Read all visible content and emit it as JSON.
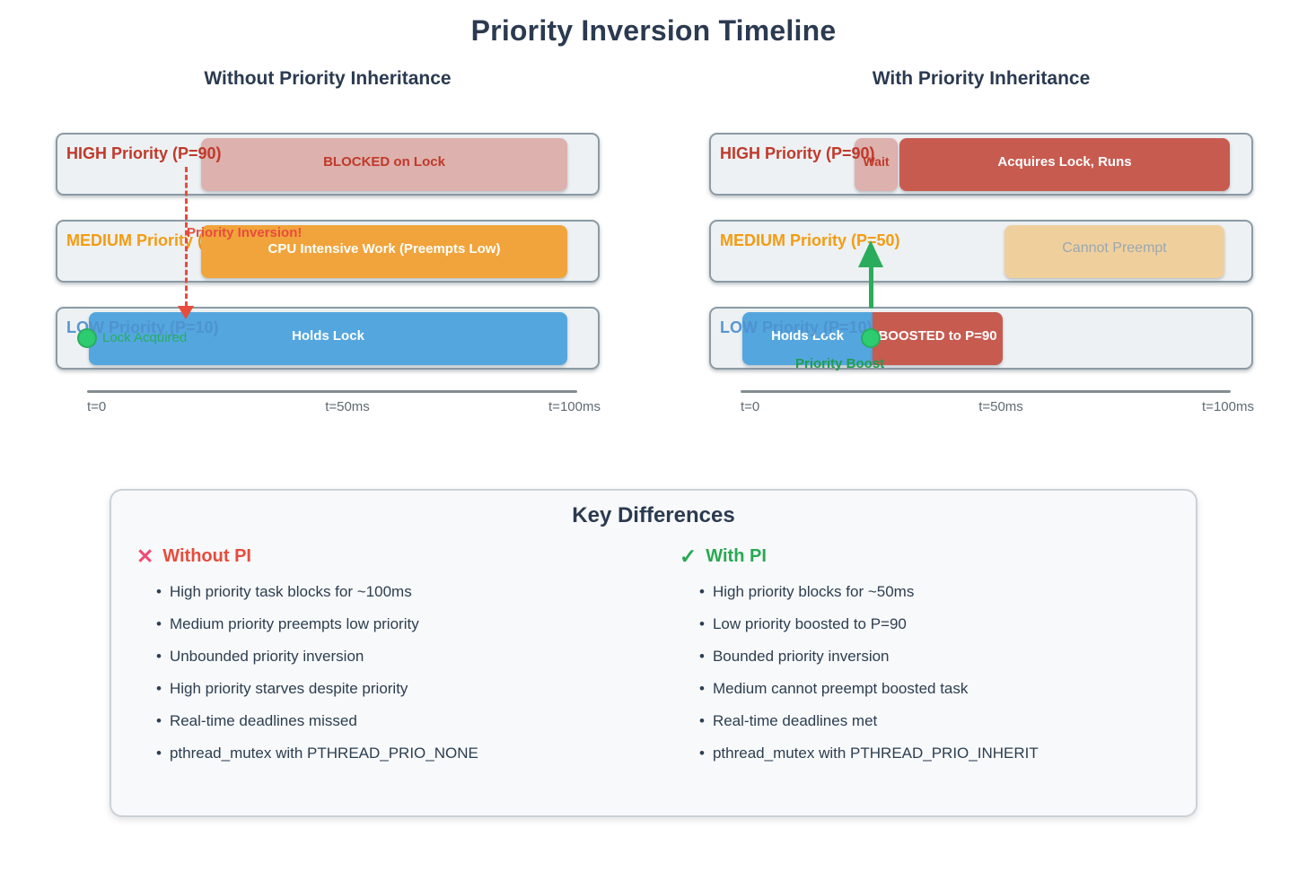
{
  "title": "Priority Inversion Timeline",
  "panels": {
    "left": {
      "heading": "Without Priority Inheritance",
      "tracks": [
        {
          "label": "HIGH Priority (P=90)"
        },
        {
          "label": "MEDIUM Priority (P=50)"
        },
        {
          "label": "LOW Priority (P=10)"
        }
      ],
      "blocks": {
        "blocked": "BLOCKED on Lock",
        "cpu": "CPU Intensive Work (Preempts Low)",
        "holds": "Holds Lock"
      },
      "annotations": {
        "priority_inversion": "Priority Inversion!",
        "lock_acquired": "Lock Acquired"
      },
      "axis": {
        "t0": "t=0",
        "t50": "t=50ms",
        "t100": "t=100ms"
      }
    },
    "right": {
      "heading": "With Priority Inheritance",
      "tracks": [
        {
          "label": "HIGH Priority (P=90)"
        },
        {
          "label": "MEDIUM Priority (P=50)"
        },
        {
          "label": "LOW Priority (P=10)"
        }
      ],
      "blocks": {
        "wait": "Wait",
        "acquires": "Acquires Lock, Runs",
        "cannot": "Cannot Preempt",
        "holds": "Holds Lock",
        "boosted": "BOOSTED to P=90"
      },
      "annotations": {
        "priority_boost": "Priority Boost"
      },
      "axis": {
        "t0": "t=0",
        "t50": "t=50ms",
        "t100": "t=100ms"
      }
    }
  },
  "key_differences": {
    "title": "Key Differences",
    "without": {
      "icon": "✕",
      "heading": "Without PI",
      "items": [
        "High priority task blocks for ~100ms",
        "Medium priority preempts low priority",
        "Unbounded priority inversion",
        "High priority starves despite priority",
        "Real-time deadlines missed",
        "pthread_mutex with PTHREAD_PRIO_NONE"
      ]
    },
    "with": {
      "icon": "✓",
      "heading": "With PI",
      "items": [
        "High priority blocks for ~50ms",
        "Low priority boosted to P=90",
        "Bounded priority inversion",
        "Medium cannot preempt boosted task",
        "Real-time deadlines met",
        "pthread_mutex with PTHREAD_PRIO_INHERIT"
      ]
    }
  },
  "colors": {
    "navy": "#2B3A50",
    "red": "#C0392B",
    "bright_red": "#E74C3C",
    "orange": "#F39C12",
    "blue": "#54A6DF",
    "brick": "#C75B50",
    "green": "#27AE60",
    "pink_x": "#EF4B73"
  }
}
